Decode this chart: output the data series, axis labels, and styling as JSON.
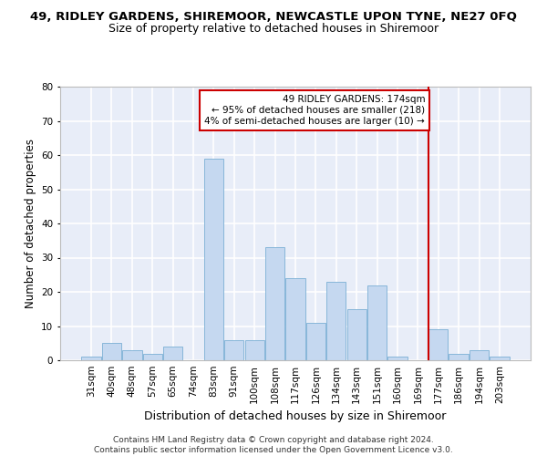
{
  "title": "49, RIDLEY GARDENS, SHIREMOOR, NEWCASTLE UPON TYNE, NE27 0FQ",
  "subtitle": "Size of property relative to detached houses in Shiremoor",
  "xlabel": "Distribution of detached houses by size in Shiremoor",
  "ylabel": "Number of detached properties",
  "categories": [
    "31sqm",
    "40sqm",
    "48sqm",
    "57sqm",
    "65sqm",
    "74sqm",
    "83sqm",
    "91sqm",
    "100sqm",
    "108sqm",
    "117sqm",
    "126sqm",
    "134sqm",
    "143sqm",
    "151sqm",
    "160sqm",
    "169sqm",
    "177sqm",
    "186sqm",
    "194sqm",
    "203sqm"
  ],
  "values": [
    1,
    5,
    3,
    2,
    4,
    0,
    59,
    6,
    6,
    33,
    24,
    11,
    23,
    15,
    22,
    1,
    0,
    9,
    2,
    3,
    1
  ],
  "bar_color": "#c5d8f0",
  "bar_edge_color": "#7bafd4",
  "background_color": "#e8edf8",
  "grid_color": "#ffffff",
  "annotation_text": "49 RIDLEY GARDENS: 174sqm\n← 95% of detached houses are smaller (218)\n4% of semi-detached houses are larger (10) →",
  "annotation_box_color": "#ffffff",
  "annotation_box_edge": "#cc0000",
  "vline_x_index": 16.5,
  "vline_color": "#cc0000",
  "ylim": [
    0,
    80
  ],
  "yticks": [
    0,
    10,
    20,
    30,
    40,
    50,
    60,
    70,
    80
  ],
  "footer_text": "Contains HM Land Registry data © Crown copyright and database right 2024.\nContains public sector information licensed under the Open Government Licence v3.0.",
  "title_fontsize": 9.5,
  "subtitle_fontsize": 9,
  "xlabel_fontsize": 9,
  "ylabel_fontsize": 8.5,
  "tick_fontsize": 7.5,
  "annotation_fontsize": 7.5,
  "footer_fontsize": 6.5
}
